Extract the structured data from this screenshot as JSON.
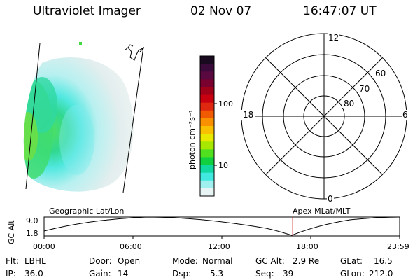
{
  "header": {
    "instrument": "Ultraviolet Imager",
    "date": "02 Nov 07",
    "time": "16:47:07 UT"
  },
  "colorbar": {
    "unit_label": "photon cm⁻²s⁻¹",
    "ticks": [
      "100",
      "10"
    ],
    "colors": [
      "#1a0a20",
      "#3a0a3a",
      "#5a0840",
      "#7a0030",
      "#a00018",
      "#c80010",
      "#e02810",
      "#f05a00",
      "#f89000",
      "#f8c000",
      "#e8e800",
      "#a8e800",
      "#50e020",
      "#10d040",
      "#10d8a0",
      "#40e8e0",
      "#a0f0f0",
      "#e8f4f4"
    ]
  },
  "polar": {
    "mlt_labels": {
      "top": "12",
      "left": "18",
      "right": "6",
      "bottom": "0"
    },
    "lat_labels": [
      "60",
      "70",
      "80"
    ]
  },
  "timeline": {
    "left_label": "Geographic Lat/Lon",
    "right_label": "Apex  MLat/MLT",
    "axis_title": "GC Alt",
    "y_ticks": [
      "9.0",
      "1.8"
    ],
    "x_ticks": [
      "00:00",
      "06:00",
      "12:00",
      "18:00",
      "23:59"
    ],
    "marker_time_hours": 16.78,
    "marker_color": "#cc0000"
  },
  "info": {
    "filter_label": "Flt:",
    "filter_value": "LBHL",
    "ip_label": "IP:",
    "ip_value": "36.0",
    "door_label": "Door:",
    "door_value": "Open",
    "gain_label": "Gain:",
    "gain_value": "14",
    "mode_label": "Mode:",
    "mode_value": "Normal",
    "dsp_label": "Dsp:",
    "dsp_value": "5.3",
    "gcalt_label": "GC Alt:",
    "gcalt_value": "2.9 Re",
    "seq_label": "Seq:",
    "seq_value": "39",
    "glat_label": "GLat:",
    "glat_value": "16.5",
    "glon_label": "GLon:",
    "glon_value": "212.0"
  }
}
